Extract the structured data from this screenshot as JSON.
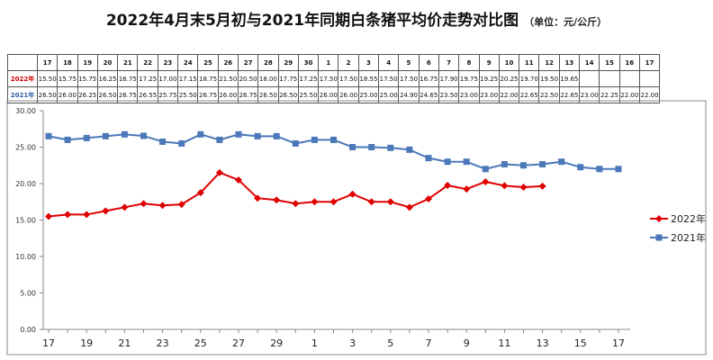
{
  "title": "2022年4月末5月初与2021年同期白条猪平均价走势对比图",
  "unit": "（单位：元/公斤）",
  "table": {
    "header": [
      "",
      "17",
      "18",
      "19",
      "20",
      "21",
      "22",
      "23",
      "24",
      "25",
      "26",
      "27",
      "28",
      "29",
      "30",
      "1",
      "2",
      "3",
      "4",
      "5",
      "6",
      "7",
      "8",
      "9",
      "10",
      "11",
      "12",
      "13",
      "14",
      "15",
      "16",
      "17"
    ],
    "rows": [
      {
        "label": "2022年",
        "color": "#d40000",
        "values": [
          "15.50",
          "15.75",
          "15.75",
          "16.25",
          "16.75",
          "17.25",
          "17.00",
          "17.15",
          "18.75",
          "21.50",
          "20.50",
          "18.00",
          "17.75",
          "17.25",
          "17.50",
          "17.50",
          "18.55",
          "17.50",
          "17.50",
          "16.75",
          "17.90",
          "19.75",
          "19.25",
          "20.25",
          "19.70",
          "19.50",
          "19.65",
          "",
          "",
          "",
          ""
        ]
      },
      {
        "label": "2021年",
        "color": "#2a5da8",
        "values": [
          "26.50",
          "26.00",
          "26.25",
          "26.50",
          "26.75",
          "26.55",
          "25.75",
          "25.50",
          "26.75",
          "26.00",
          "26.75",
          "26.50",
          "26.50",
          "25.50",
          "26.00",
          "26.00",
          "25.00",
          "25.00",
          "24.90",
          "24.65",
          "23.50",
          "23.00",
          "23.00",
          "22.00",
          "22.65",
          "22.50",
          "22.65",
          "23.00",
          "22.25",
          "22.00",
          "22.00"
        ]
      }
    ]
  },
  "chart_data": {
    "type": "line",
    "x": [
      "17",
      "18",
      "19",
      "20",
      "21",
      "22",
      "23",
      "24",
      "25",
      "26",
      "27",
      "28",
      "29",
      "30",
      "1",
      "2",
      "3",
      "4",
      "5",
      "6",
      "7",
      "8",
      "9",
      "10",
      "11",
      "12",
      "13",
      "14",
      "15",
      "16",
      "17"
    ],
    "x_tick_labels": [
      "17",
      "19",
      "21",
      "23",
      "25",
      "27",
      "29",
      "1",
      "3",
      "5",
      "7",
      "9",
      "11",
      "13",
      "15",
      "17"
    ],
    "y_tick_labels": [
      "0.00",
      "5.00",
      "10.00",
      "15.00",
      "20.00",
      "25.00",
      "30.00"
    ],
    "ylim": [
      0,
      30
    ],
    "grid": false,
    "legend_position": "right",
    "series": [
      {
        "name": "2022年",
        "color": "#e00000",
        "marker": "diamond",
        "values": [
          15.5,
          15.75,
          15.75,
          16.25,
          16.75,
          17.25,
          17.0,
          17.15,
          18.75,
          21.5,
          20.5,
          18.0,
          17.75,
          17.25,
          17.5,
          17.5,
          18.55,
          17.5,
          17.5,
          16.75,
          17.9,
          19.75,
          19.25,
          20.25,
          19.7,
          19.5,
          19.65,
          null,
          null,
          null,
          null
        ]
      },
      {
        "name": "2021年",
        "color": "#4a78b8",
        "marker": "square",
        "values": [
          26.5,
          26.0,
          26.25,
          26.5,
          26.75,
          26.55,
          25.75,
          25.5,
          26.75,
          26.0,
          26.75,
          26.5,
          26.5,
          25.5,
          26.0,
          26.0,
          25.0,
          25.0,
          24.9,
          24.65,
          23.5,
          23.0,
          23.0,
          22.0,
          22.65,
          22.5,
          22.65,
          23.0,
          22.25,
          22.0,
          22.0
        ]
      }
    ]
  }
}
